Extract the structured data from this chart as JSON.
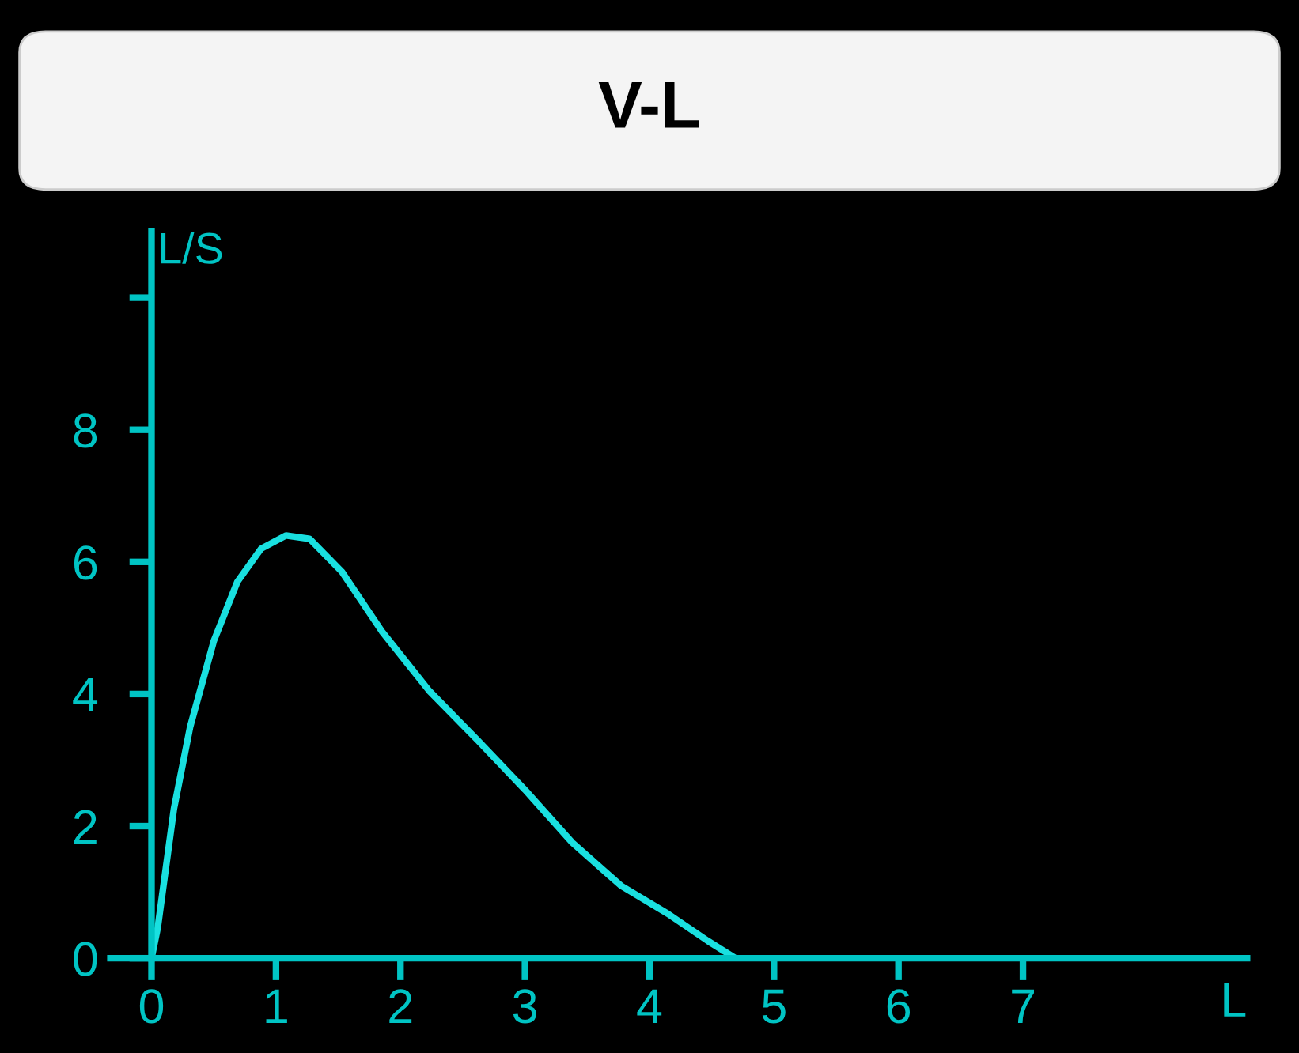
{
  "chart_data": {
    "type": "line",
    "title": "V-L",
    "xlabel": "L",
    "ylabel": "L/S",
    "xlim": [
      -0.33,
      8.8
    ],
    "ylim": [
      0,
      11
    ],
    "xticks": [
      0,
      1,
      2,
      3,
      4,
      5,
      6,
      7
    ],
    "yticks": [
      0,
      2,
      4,
      6,
      8,
      {
        "value": 10,
        "label": null
      }
    ],
    "grid": false,
    "legend": false,
    "marker": "none",
    "line_style": "solid",
    "series": [
      {
        "color": "#19e0e0",
        "x": [
          0.0,
          0.05,
          0.18,
          0.31,
          0.5,
          0.69,
          0.88,
          1.08,
          1.27,
          1.53,
          1.85,
          2.23,
          2.62,
          3.0,
          3.38,
          3.77,
          4.15,
          4.47,
          4.69
        ],
        "values": [
          0.0,
          0.46,
          2.26,
          3.5,
          4.8,
          5.7,
          6.2,
          6.4,
          6.35,
          5.85,
          4.95,
          4.05,
          3.3,
          2.55,
          1.75,
          1.1,
          0.67,
          0.26,
          0.0
        ]
      }
    ]
  }
}
